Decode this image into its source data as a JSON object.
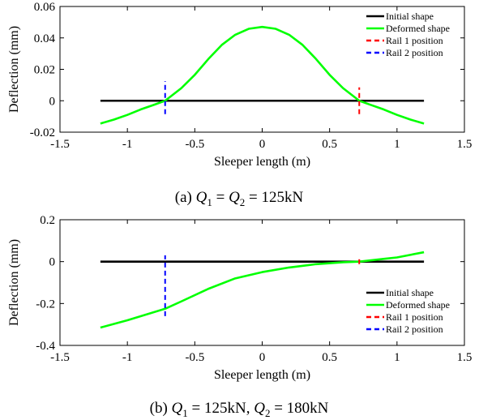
{
  "chart_data": [
    {
      "type": "line",
      "xlabel": "Sleeper length (m)",
      "ylabel": "Deflection (mm)",
      "xlim": [
        -1.5,
        1.5
      ],
      "ylim": [
        -0.02,
        0.06
      ],
      "xticks": [
        -1.5,
        -1,
        -0.5,
        0,
        0.5,
        1,
        1.5
      ],
      "xtick_labels": [
        "-1.5",
        "-1",
        "-0.5",
        "0",
        "0.5",
        "1",
        "1.5"
      ],
      "yticks": [
        -0.02,
        0,
        0.02,
        0.04,
        0.06
      ],
      "ytick_labels": [
        "-0.02",
        "0",
        "0.02",
        "0.04",
        "0.06"
      ],
      "legend_position": "top-right",
      "caption": {
        "prefix": "(a) ",
        "q1": "Q",
        "sub1": "1",
        "eq1": " = ",
        "q2": "Q",
        "sub2": "2",
        "rest": " = 125kN"
      },
      "series": [
        {
          "name": "Initial shape",
          "color": "#000000",
          "style": "solid",
          "x": [
            -1.2,
            1.2
          ],
          "y": [
            0,
            0
          ]
        },
        {
          "name": "Deformed shape",
          "color": "#00ff00",
          "style": "solid",
          "x": [
            -1.2,
            -1.1,
            -1.0,
            -0.9,
            -0.8,
            -0.72,
            -0.6,
            -0.5,
            -0.4,
            -0.3,
            -0.2,
            -0.1,
            0,
            0.1,
            0.2,
            0.3,
            0.4,
            0.5,
            0.6,
            0.72,
            0.8,
            0.9,
            1.0,
            1.1,
            1.2
          ],
          "y": [
            -0.0145,
            -0.012,
            -0.009,
            -0.0055,
            -0.0025,
            0,
            0.008,
            0.0165,
            0.0265,
            0.0355,
            0.042,
            0.0458,
            0.047,
            0.0458,
            0.042,
            0.0355,
            0.0265,
            0.0165,
            0.008,
            0,
            -0.0025,
            -0.0055,
            -0.009,
            -0.012,
            -0.0145
          ]
        },
        {
          "name": "Rail 1 position",
          "color": "#ff0000",
          "style": "dashed",
          "x": [
            0.72,
            0.72
          ],
          "y": [
            -0.0085,
            0.0085
          ]
        },
        {
          "name": "Rail 2 position",
          "color": "#0000ff",
          "style": "dashed",
          "x": [
            -0.72,
            -0.72
          ],
          "y": [
            -0.0085,
            0.0125
          ]
        }
      ]
    },
    {
      "type": "line",
      "xlabel": "Sleeper length (m)",
      "ylabel": "Deflection (mm)",
      "xlim": [
        -1.5,
        1.5
      ],
      "ylim": [
        -0.4,
        0.2
      ],
      "xticks": [
        -1.5,
        -1,
        -0.5,
        0,
        0.5,
        1,
        1.5
      ],
      "xtick_labels": [
        "-1.5",
        "-1",
        "-0.5",
        "0",
        "0.5",
        "1",
        "1.5"
      ],
      "yticks": [
        -0.4,
        -0.2,
        0,
        0.2
      ],
      "ytick_labels": [
        "-0.4",
        "-0.2",
        "0",
        "0.2"
      ],
      "legend_position": "bottom-right",
      "caption": {
        "prefix": "(b) ",
        "q1": "Q",
        "sub1": "1",
        "eq1": " = 125kN, ",
        "q2": "Q",
        "sub2": "2",
        "rest": " = 180kN"
      },
      "series": [
        {
          "name": "Initial shape",
          "color": "#000000",
          "style": "solid",
          "x": [
            -1.2,
            1.2
          ],
          "y": [
            0,
            0
          ]
        },
        {
          "name": "Deformed shape",
          "color": "#00ff00",
          "style": "solid",
          "x": [
            -1.2,
            -1.0,
            -0.72,
            -0.6,
            -0.4,
            -0.2,
            0,
            0.2,
            0.4,
            0.6,
            0.72,
            0.9,
            1.0,
            1.2
          ],
          "y": [
            -0.315,
            -0.28,
            -0.225,
            -0.19,
            -0.13,
            -0.08,
            -0.05,
            -0.028,
            -0.012,
            -0.003,
            0,
            0.013,
            0.02,
            0.045
          ]
        },
        {
          "name": "Rail 1 position",
          "color": "#ff0000",
          "style": "dashed",
          "x": [
            0.72,
            0.72
          ],
          "y": [
            -0.012,
            0.012
          ]
        },
        {
          "name": "Rail 2 position",
          "color": "#0000ff",
          "style": "dashed",
          "x": [
            -0.72,
            -0.72
          ],
          "y": [
            -0.26,
            0.03
          ]
        }
      ]
    }
  ]
}
